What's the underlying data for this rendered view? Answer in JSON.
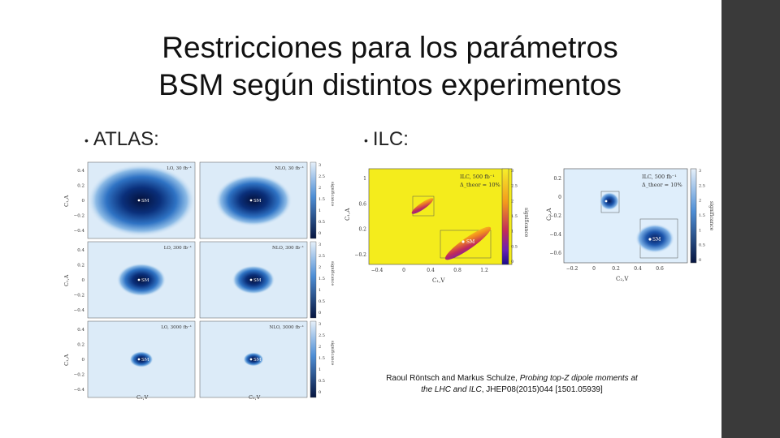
{
  "slide": {
    "title_line1": "Restricciones para los parámetros",
    "title_line2": "BSM según distintos experimentos",
    "sidebar_color": "#3a3a3a"
  },
  "bullets": [
    {
      "label": "ATLAS:"
    },
    {
      "label": "ILC:"
    }
  ],
  "atlas": {
    "panels": [
      {
        "label": "LO, 30 fb⁻¹",
        "spread": 1.0
      },
      {
        "label": "NLO, 30 fb⁻¹",
        "spread": 0.72
      },
      {
        "label": "LO, 300 fb⁻¹",
        "spread": 0.46
      },
      {
        "label": "NLO, 300 fb⁻¹",
        "spread": 0.4
      },
      {
        "label": "LO, 3000 fb⁻¹",
        "spread": 0.22
      },
      {
        "label": "NLO, 3000 fb⁻¹",
        "spread": 0.19
      }
    ],
    "marker": "SM",
    "ytick_rows": [
      [
        "0.4",
        "0.2",
        "0",
        "−0.2",
        "−0.4"
      ],
      [
        "0.4",
        "0.2",
        "0",
        "−0.2",
        "−0.4"
      ],
      [
        "0.4",
        "0.2",
        "0",
        "−0.2",
        "−0.4"
      ]
    ],
    "xticks_left": [
      "−0.4",
      "−0.2",
      "0",
      "0.2",
      "0.4"
    ],
    "xticks_right": [
      "−0.4",
      "−0.2",
      "0",
      "0.2",
      "0.4"
    ],
    "ylabel": "C₁,A",
    "xlabel": "C₂,V",
    "colorbar_ticks": [
      "3",
      "2.5",
      "2",
      "1.5",
      "1",
      "0.5",
      "0"
    ],
    "colorbar_label": "significance"
  },
  "ilc_left": {
    "label_line1": "ILC, 500 fb⁻¹",
    "label_line2": "Δ_theor = 10%",
    "marker": "SM",
    "yticks": [
      "1",
      "0.6",
      "0.2",
      "−0.2"
    ],
    "xticks": [
      "−0.4",
      "0",
      "0.4",
      "0.8",
      "1.2"
    ],
    "ylabel": "C₁,A",
    "xlabel": "C₁,V",
    "colorbar_ticks": [
      "3",
      "2.5",
      "2",
      "1.5",
      "1",
      "0.5",
      "0"
    ],
    "colorbar_label": "significance"
  },
  "ilc_right": {
    "label_line1": "ILC, 500 fb⁻¹",
    "label_line2": "Δ_theor = 10%",
    "marker": "SM",
    "yticks": [
      "0.2",
      "0",
      "−0.2",
      "−0.4",
      "−0.6"
    ],
    "xticks": [
      "−0.2",
      "0",
      "0.2",
      "0.4",
      "0.6"
    ],
    "ylabel": "C₂,A",
    "xlabel": "C₂,V",
    "colorbar_ticks": [
      "3",
      "2.5",
      "2",
      "1.5",
      "1",
      "0.5",
      "0"
    ],
    "colorbar_label": "significance"
  },
  "citation": {
    "authors": "Raoul Röntsch and Markus Schulze,",
    "title": "Probing top-Z dipole moments at the LHC and ILC",
    "ref": ", JHEP08(2015)044  [1501.05939]"
  }
}
